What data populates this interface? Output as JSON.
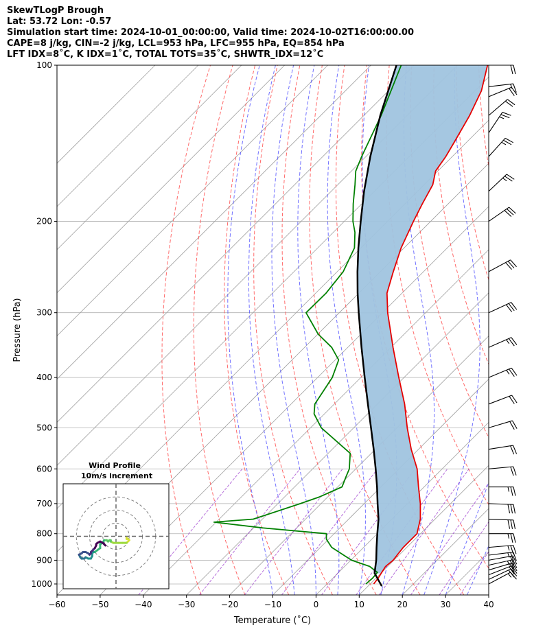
{
  "header": {
    "line1": "SkewTLogP Brough",
    "line2": "Lat: 53.72   Lon: -0.57",
    "line3": "Simulation start time: 2024-10-01_00:00:00, Valid time: 2024-10-02T16:00:00.00",
    "line4": "CAPE=8 j/kg, CIN=-2 j/kg, LCL=953 hPa, LFC=955 hPa, EQ=854 hPa",
    "line5": "LFT IDX=8˚C, K IDX=1˚C, TOTAL TOTS=35˚C, SHWTR_IDX=12˚C"
  },
  "chart_data": {
    "type": "line",
    "title": "SkewTLogP Brough",
    "xlabel": "Temperature (˚C)",
    "ylabel": "Pressure (hPa)",
    "xlim": [
      -60,
      40
    ],
    "ylim": [
      1050,
      100
    ],
    "yscale": "log",
    "skew": 45,
    "grid": true,
    "x_ticks": [
      -60,
      -50,
      -40,
      -30,
      -20,
      -10,
      0,
      10,
      20,
      30,
      40
    ],
    "x_tick_labels": [
      "−60",
      "−50",
      "−40",
      "−30",
      "−20",
      "−10",
      "0",
      "10",
      "20",
      "30",
      "40"
    ],
    "y_ticks": [
      1000,
      900,
      800,
      700,
      600,
      500,
      400,
      300,
      200,
      100
    ],
    "y_tick_labels": [
      "1000",
      "900",
      "800",
      "700",
      "600",
      "500",
      "400",
      "300",
      "200",
      "100"
    ],
    "colors": {
      "temperature": "#e60000",
      "dewpoint": "#008000",
      "parcel": "#000000",
      "cape_fill": "#a0c4df",
      "dry_adiabats": "#ff5050",
      "moist_adiabats": "#4d4dff",
      "mixing_ratio": "#9933cc",
      "isotherms": "#a0a0a0"
    },
    "series": [
      {
        "name": "Temperature",
        "p": [
          1000,
          975,
          950,
          925,
          900,
          850,
          800,
          750,
          700,
          650,
          600,
          550,
          500,
          450,
          400,
          350,
          300,
          275,
          250,
          225,
          200,
          185,
          170,
          160,
          150,
          140,
          125,
          112,
          100
        ],
        "t": [
          10.8,
          10.5,
          10.0,
          9.5,
          9.8,
          9.2,
          9.2,
          6.6,
          3.0,
          -1.3,
          -5.8,
          -11.7,
          -17.6,
          -23.7,
          -31.2,
          -39.5,
          -48.8,
          -53.5,
          -57.0,
          -60.7,
          -64.0,
          -66.0,
          -68.0,
          -70.5,
          -71.5,
          -73.0,
          -75.5,
          -78.5,
          -83.0
        ]
      },
      {
        "name": "Dewpoint",
        "p": [
          1000,
          975,
          950,
          925,
          900,
          850,
          820,
          800,
          780,
          760,
          750,
          700,
          680,
          650,
          620,
          600,
          560,
          500,
          470,
          450,
          400,
          370,
          350,
          330,
          300,
          275,
          250,
          225,
          210,
          200,
          185,
          170,
          160,
          150,
          125,
          100
        ],
        "t": [
          9.0,
          9.2,
          9.0,
          5.8,
          0.2,
          -7.4,
          -10.5,
          -11.8,
          -27.7,
          -40.5,
          -32.1,
          -24.8,
          -22.0,
          -19.0,
          -20.5,
          -21.5,
          -24.9,
          -37.5,
          -42.4,
          -44.5,
          -46.6,
          -49.2,
          -53.7,
          -59.9,
          -67.7,
          -67.6,
          -68.6,
          -71.5,
          -75.0,
          -78.0,
          -82.0,
          -86.0,
          -89.0,
          -91.0,
          -96.0,
          -103.0
        ]
      },
      {
        "name": "Parcel",
        "p": [
          1010,
          953,
          900,
          850,
          800,
          750,
          700,
          650,
          600,
          550,
          500,
          450,
          400,
          350,
          300,
          275,
          250,
          225,
          200,
          175,
          150,
          125,
          100
        ],
        "t": [
          13.2,
          8.5,
          5.9,
          3.0,
          0.0,
          -3.1,
          -6.9,
          -10.9,
          -15.4,
          -20.4,
          -26.0,
          -32.2,
          -39.1,
          -46.8,
          -55.5,
          -60.3,
          -65.3,
          -70.6,
          -76.2,
          -82.4,
          -89.0,
          -96.2,
          -104.1
        ]
      }
    ],
    "wind_barbs": {
      "p": [
        1000,
        980,
        960,
        940,
        920,
        900,
        880,
        850,
        800,
        750,
        700,
        650,
        600,
        550,
        500,
        450,
        400,
        350,
        300,
        250,
        200,
        175,
        150,
        135,
        125,
        115,
        110,
        100
      ],
      "u_kt": [
        -15,
        -17,
        -18,
        -20,
        -22,
        -22,
        -24,
        -24,
        -26,
        -28,
        -28,
        -25,
        -22,
        -19,
        -20,
        -21,
        -24,
        -25,
        -26,
        -26,
        -23,
        -19,
        -18,
        -14,
        -14,
        -17,
        -17,
        -19
      ],
      "v_kt": [
        -8,
        -8,
        -7,
        -6,
        -5,
        -4,
        -3,
        -2,
        0,
        1,
        1,
        0,
        -2,
        -3,
        -6,
        -8,
        -10,
        -11,
        -12,
        -14,
        -16,
        -18,
        -20,
        -21,
        -12,
        -7,
        -2,
        0
      ]
    },
    "hodograph": {
      "title": "Wind Profile",
      "subtitle": "10m/s increment",
      "rings_ms": [
        10,
        20,
        30
      ],
      "range_ms": [
        -40,
        40
      ],
      "u": [
        8,
        8,
        9,
        10,
        9,
        8,
        7,
        5,
        2,
        -2,
        -4,
        -4,
        -5,
        -6,
        -7,
        -9,
        -10,
        -12,
        -12,
        -16,
        -17,
        -18,
        -18,
        -19,
        -21,
        -23,
        -24,
        -26,
        -27,
        -27,
        -28,
        -26,
        -25,
        -23,
        -21,
        -20,
        -19,
        -19,
        -18,
        -17,
        -16,
        -15,
        -15,
        -14,
        -12,
        -10,
        -8
      ],
      "v": [
        -1,
        -2,
        -2,
        -3,
        -4,
        -5,
        -5,
        -5,
        -5,
        -5,
        -4,
        -3,
        -3,
        -4,
        -3,
        -3,
        -5,
        -6,
        -9,
        -12,
        -12,
        -13,
        -15,
        -17,
        -17,
        -16,
        -17,
        -17,
        -16,
        -16,
        -14,
        -13,
        -12,
        -12,
        -13,
        -14,
        -13,
        -12,
        -11,
        -10,
        -9,
        -7,
        -6,
        -5,
        -4,
        -5,
        -7
      ]
    }
  }
}
